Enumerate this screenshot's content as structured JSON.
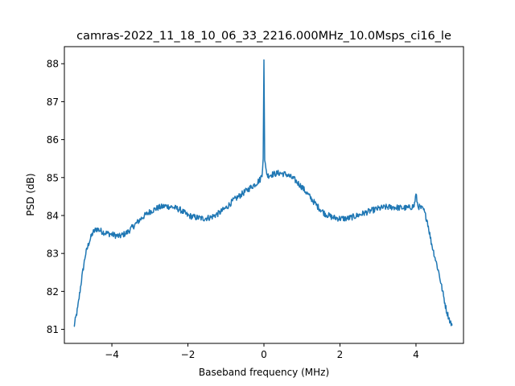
{
  "chart_data": {
    "type": "line",
    "title": "camras-2022_11_18_10_06_33_2216.000MHz_10.0Msps_ci16_le",
    "xlabel": "Baseband frequency (MHz)",
    "ylabel": "PSD (dB)",
    "xlim": [
      -5.25,
      5.25
    ],
    "ylim": [
      80.63,
      88.45
    ],
    "xticks": [
      -4,
      -2,
      0,
      2,
      4
    ],
    "xtick_labels": [
      "−4",
      "−2",
      "0",
      "2",
      "4"
    ],
    "yticks": [
      81,
      82,
      83,
      84,
      85,
      86,
      87,
      88
    ],
    "ytick_labels": [
      "81",
      "82",
      "83",
      "84",
      "85",
      "86",
      "87",
      "88"
    ],
    "grid": false,
    "line_color": "#1f77b4",
    "series": [
      {
        "x": [
          -5.0,
          -4.9,
          -4.8,
          -4.7,
          -4.6,
          -4.5,
          -4.4,
          -4.3,
          -4.2,
          -4.0,
          -3.8,
          -3.6,
          -3.5,
          -3.4,
          -3.3,
          -3.2,
          -3.0,
          -2.8,
          -2.6,
          -2.4,
          -2.2,
          -2.0,
          -1.8,
          -1.6,
          -1.4,
          -1.2,
          -1.0,
          -0.8,
          -0.6,
          -0.4,
          -0.2,
          -0.1,
          -0.05,
          -0.02,
          0.0,
          0.02,
          0.05,
          0.1,
          0.2,
          0.4,
          0.6,
          0.8,
          1.0,
          1.2,
          1.4,
          1.6,
          1.8,
          2.0,
          2.2,
          2.4,
          2.6,
          2.8,
          3.0,
          3.2,
          3.4,
          3.6,
          3.8,
          3.95,
          4.0,
          4.05,
          4.2,
          4.3,
          4.4,
          4.5,
          4.6,
          4.7,
          4.8,
          4.9,
          4.95
        ],
        "y": [
          81.05,
          81.55,
          82.3,
          82.95,
          83.3,
          83.55,
          83.65,
          83.6,
          83.55,
          83.5,
          83.45,
          83.55,
          83.65,
          83.75,
          83.85,
          83.95,
          84.1,
          84.2,
          84.25,
          84.22,
          84.15,
          84.0,
          83.95,
          83.92,
          83.95,
          84.05,
          84.2,
          84.4,
          84.55,
          84.7,
          84.85,
          84.95,
          85.1,
          85.5,
          88.1,
          85.5,
          85.2,
          85.05,
          85.08,
          85.12,
          85.08,
          84.95,
          84.75,
          84.5,
          84.25,
          84.05,
          83.95,
          83.92,
          83.92,
          83.98,
          84.05,
          84.12,
          84.18,
          84.22,
          84.22,
          84.2,
          84.2,
          84.25,
          84.55,
          84.25,
          84.15,
          83.85,
          83.3,
          82.9,
          82.5,
          82.0,
          81.5,
          81.2,
          81.1
        ]
      }
    ]
  }
}
